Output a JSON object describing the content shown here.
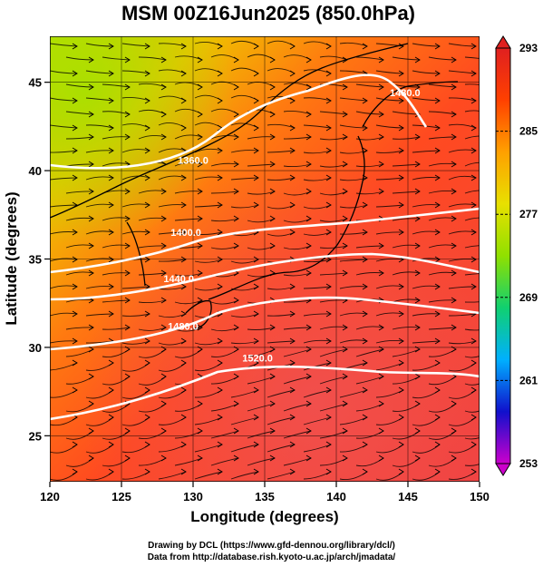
{
  "chart_data": {
    "type": "heatmap",
    "title": "MSM 00Z16Jun2025 (850.0hPa)",
    "xlabel": "Longitude (degrees)",
    "ylabel": "Latitude  (degrees)",
    "xlim": [
      120,
      150
    ],
    "ylim": [
      22.4,
      47.6
    ],
    "xticks": [
      120,
      125,
      130,
      135,
      140,
      145,
      150
    ],
    "yticks": [
      25,
      30,
      35,
      40,
      45
    ],
    "colorbar": {
      "min": 253,
      "max": 293,
      "ticks": [
        293,
        285,
        277,
        269,
        261,
        253
      ],
      "gradient": [
        "#cc00cc",
        "#1010cc",
        "#00b0ff",
        "#10d070",
        "#90e000",
        "#e8e000",
        "#ffa000",
        "#ff4000",
        "#e02020"
      ]
    },
    "contours": [
      {
        "label": "1360.0",
        "lon": 130.0,
        "lat": 40.4
      },
      {
        "label": "1400.0",
        "lon": 129.5,
        "lat": 36.3
      },
      {
        "label": "1440.0",
        "lon": 129.0,
        "lat": 33.7
      },
      {
        "label": "1480.0",
        "lon": 129.3,
        "lat": 31.0
      },
      {
        "label": "1520.0",
        "lon": 134.5,
        "lat": 29.2
      },
      {
        "label": "1480.0",
        "lon": 144.8,
        "lat": 44.2
      }
    ],
    "grid": true,
    "legend": "colorbar-right",
    "colors": {
      "background": "#ffffff",
      "contour": "#ffffff",
      "streamline": "#000000"
    }
  },
  "credits": {
    "line1": "Drawing by DCL (https://www.gfd-dennou.org/library/dcl/)",
    "line2": "Data from http://database.rish.kyoto-u.ac.jp/arch/jmadata/"
  }
}
